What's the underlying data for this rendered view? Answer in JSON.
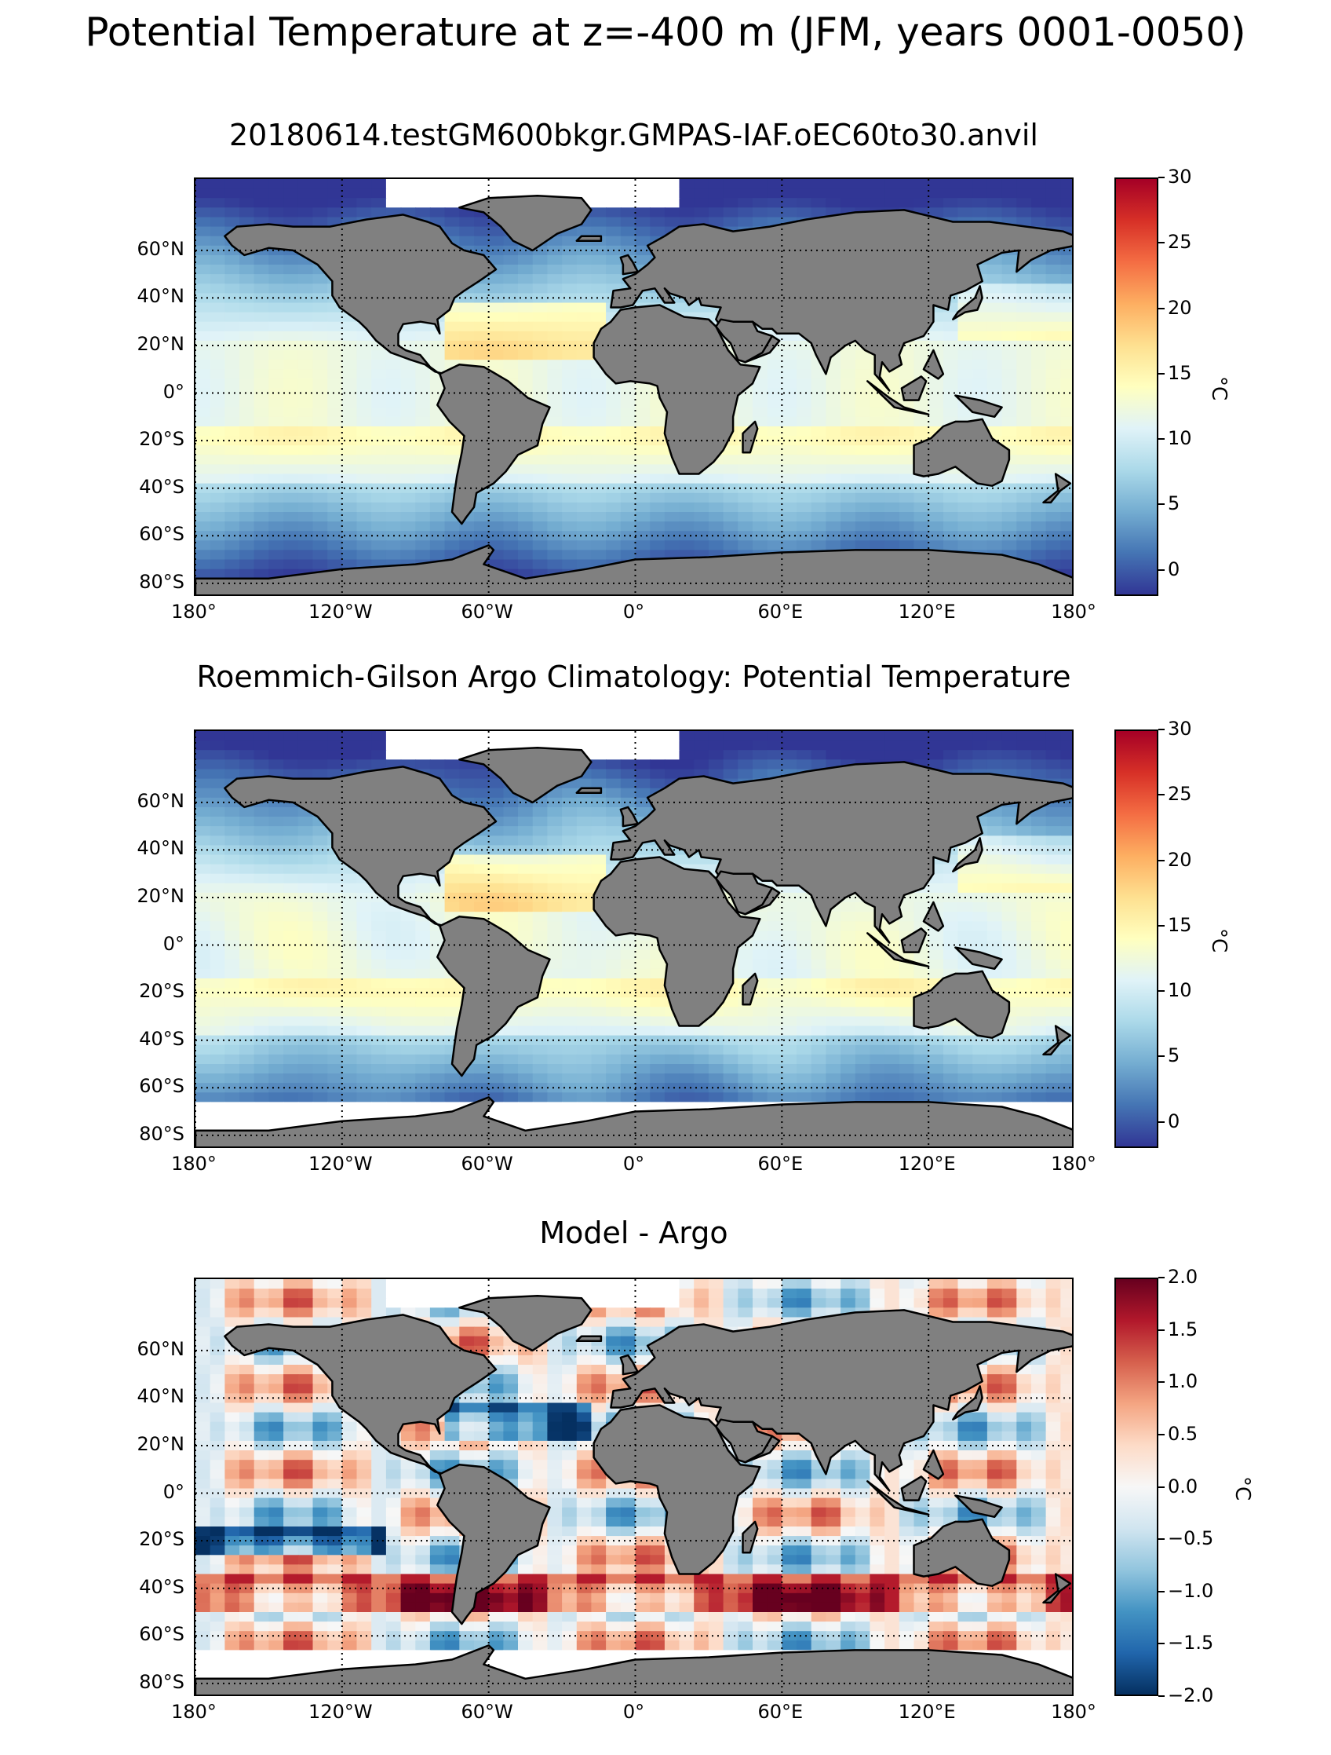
{
  "figure": {
    "suptitle": "Potential Temperature at z=-400 m (JFM, years 0001-0050)"
  },
  "colors": {
    "land": "#808080",
    "nodata": "#ffffff",
    "coast": "#000000"
  },
  "chart_data": [
    {
      "type": "heatmap",
      "title": "20180614.testGM600bkgr.GMPAS-IAF.oEC60to30.anvil",
      "lat_ticks": [
        "60°N",
        "40°N",
        "20°N",
        "0°",
        "20°S",
        "40°S",
        "60°S",
        "80°S"
      ],
      "lon_ticks": [
        "180°",
        "120°W",
        "60°W",
        "0°",
        "60°E",
        "120°E",
        "180°"
      ],
      "colorbar": {
        "ticks": [
          "30",
          "25",
          "20",
          "15",
          "10",
          "5",
          "0"
        ],
        "range": [
          -2,
          30
        ],
        "unit": "°C",
        "cmap": "RdYlBu_r"
      },
      "field": "model"
    },
    {
      "type": "heatmap",
      "title": "Roemmich-Gilson Argo Climatology: Potential Temperature",
      "lat_ticks": [
        "60°N",
        "40°N",
        "20°N",
        "0°",
        "20°S",
        "40°S",
        "60°S",
        "80°S"
      ],
      "lon_ticks": [
        "180°",
        "120°W",
        "60°W",
        "0°",
        "60°E",
        "120°E",
        "180°"
      ],
      "colorbar": {
        "ticks": [
          "30",
          "25",
          "20",
          "15",
          "10",
          "5",
          "0"
        ],
        "range": [
          -2,
          30
        ],
        "unit": "°C",
        "cmap": "RdYlBu_r"
      },
      "field": "obs"
    },
    {
      "type": "heatmap",
      "title": "Model - Argo",
      "lat_ticks": [
        "60°N",
        "40°N",
        "20°N",
        "0°",
        "20°S",
        "40°S",
        "60°S",
        "80°S"
      ],
      "lon_ticks": [
        "180°",
        "120°W",
        "60°W",
        "0°",
        "60°E",
        "120°E",
        "180°"
      ],
      "colorbar": {
        "ticks": [
          "2.0",
          "1.5",
          "1.0",
          "0.5",
          "0.0",
          "−0.5",
          "−1.0",
          "−1.5",
          "−2.0"
        ],
        "range": [
          -2,
          2
        ],
        "unit": "°C",
        "cmap": "RdBu_r"
      },
      "field": "bias"
    }
  ]
}
